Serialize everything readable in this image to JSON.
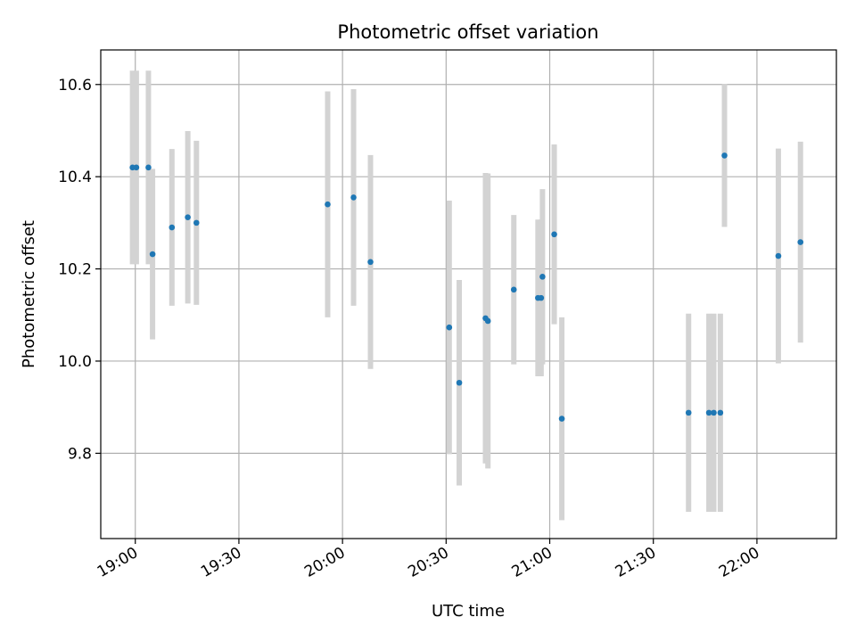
{
  "chart_data": {
    "type": "scatter",
    "title": "Photometric offset variation",
    "xlabel": "UTC time",
    "ylabel": "Photometric offset",
    "x_unit": "minutes after 19:00 UTC",
    "xlim": [
      -10,
      203
    ],
    "ylim": [
      9.615,
      10.675
    ],
    "grid": true,
    "xticks": [
      {
        "value": 0,
        "label": "19:00"
      },
      {
        "value": 30,
        "label": "19:30"
      },
      {
        "value": 60,
        "label": "20:00"
      },
      {
        "value": 90,
        "label": "20:30"
      },
      {
        "value": 120,
        "label": "21:00"
      },
      {
        "value": 150,
        "label": "21:30"
      },
      {
        "value": 180,
        "label": "22:00"
      }
    ],
    "yticks": [
      {
        "value": 9.8,
        "label": "9.8"
      },
      {
        "value": 10.0,
        "label": "10.0"
      },
      {
        "value": 10.2,
        "label": "10.2"
      },
      {
        "value": 10.4,
        "label": "10.4"
      },
      {
        "value": 10.6,
        "label": "10.6"
      }
    ],
    "colors": {
      "points": "#1f77b4",
      "errorbars": "#d3d3d3",
      "grid": "#b0b0b0",
      "axes": "#000000"
    },
    "series": [
      {
        "name": "offset",
        "points": [
          {
            "x": -0.8,
            "y": 10.42,
            "yerr": 0.21
          },
          {
            "x": 0.3,
            "y": 10.42,
            "yerr": 0.21
          },
          {
            "x": 3.8,
            "y": 10.42,
            "yerr": 0.21
          },
          {
            "x": 5.0,
            "y": 10.232,
            "yerr": 0.185
          },
          {
            "x": 10.6,
            "y": 10.29,
            "yerr": 0.17
          },
          {
            "x": 15.2,
            "y": 10.312,
            "yerr": 0.187
          },
          {
            "x": 17.7,
            "y": 10.3,
            "yerr": 0.178
          },
          {
            "x": 55.7,
            "y": 10.34,
            "yerr": 0.245
          },
          {
            "x": 63.2,
            "y": 10.355,
            "yerr": 0.235
          },
          {
            "x": 68.1,
            "y": 10.215,
            "yerr": 0.232
          },
          {
            "x": 90.9,
            "y": 10.073,
            "yerr": 0.275
          },
          {
            "x": 93.8,
            "y": 9.953,
            "yerr": 0.223
          },
          {
            "x": 101.4,
            "y": 10.093,
            "yerr": 0.315
          },
          {
            "x": 102.1,
            "y": 10.087,
            "yerr": 0.32
          },
          {
            "x": 109.6,
            "y": 10.155,
            "yerr": 0.162
          },
          {
            "x": 116.6,
            "y": 10.137,
            "yerr": 0.17
          },
          {
            "x": 117.5,
            "y": 10.137,
            "yerr": 0.17
          },
          {
            "x": 117.9,
            "y": 10.183,
            "yerr": 0.19
          },
          {
            "x": 121.3,
            "y": 10.275,
            "yerr": 0.195
          },
          {
            "x": 123.5,
            "y": 9.875,
            "yerr": 0.22
          },
          {
            "x": 160.2,
            "y": 9.888,
            "yerr": 0.215
          },
          {
            "x": 166.1,
            "y": 9.888,
            "yerr": 0.215
          },
          {
            "x": 167.5,
            "y": 9.888,
            "yerr": 0.215
          },
          {
            "x": 169.4,
            "y": 9.888,
            "yerr": 0.215
          },
          {
            "x": 170.6,
            "y": 10.446,
            "yerr": 0.155
          },
          {
            "x": 186.2,
            "y": 10.228,
            "yerr": 0.233
          },
          {
            "x": 192.6,
            "y": 10.258,
            "yerr": 0.218
          }
        ]
      }
    ]
  }
}
